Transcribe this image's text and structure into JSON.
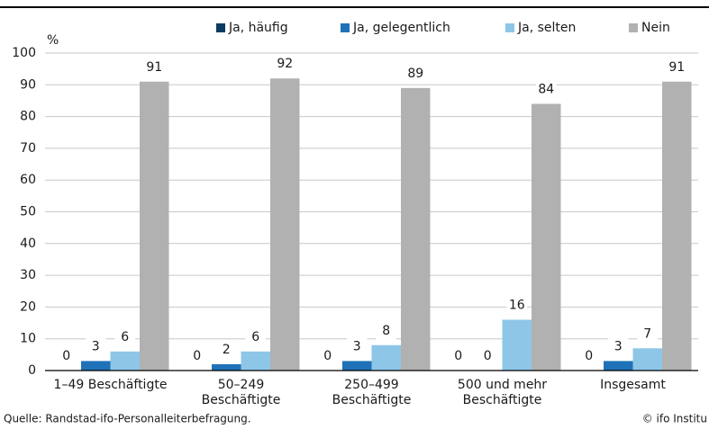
{
  "chart_data": {
    "type": "bar",
    "unit_label": "%",
    "categories": [
      [
        "1–49 Beschäftigte"
      ],
      [
        "50–249",
        "Beschäftigte"
      ],
      [
        "250–499",
        "Beschäftigte"
      ],
      [
        "500 und mehr",
        "Beschäftigte"
      ],
      [
        "Insgesamt"
      ]
    ],
    "series": [
      {
        "name": "Ja, häufig",
        "color": "#0b3b60",
        "values": [
          0,
          0,
          0,
          0,
          0
        ]
      },
      {
        "name": "Ja, gelegentlich",
        "color": "#1f72b8",
        "values": [
          3,
          2,
          3,
          0,
          3
        ]
      },
      {
        "name": "Ja, selten",
        "color": "#8ec6e8",
        "values": [
          6,
          6,
          8,
          16,
          7
        ]
      },
      {
        "name": "Nein",
        "color": "#b1b1b1",
        "values": [
          91,
          92,
          89,
          84,
          91
        ]
      }
    ],
    "ylim": [
      0,
      100
    ],
    "yticks": [
      0,
      10,
      20,
      30,
      40,
      50,
      60,
      70,
      80,
      90,
      100
    ],
    "grid": true,
    "legend": "top",
    "source": "Quelle: Randstad-ifo-Personalleiterbefragung.",
    "credit": "© ifo Institu"
  }
}
